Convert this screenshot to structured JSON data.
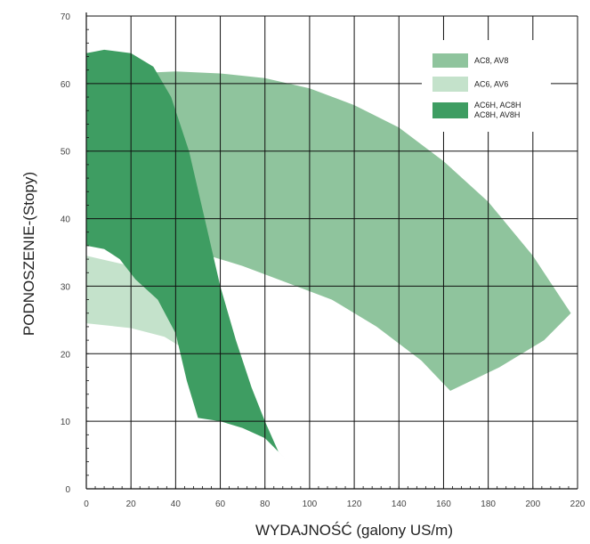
{
  "chart_data": {
    "type": "area",
    "xlabel": "WYDAJNOŚĆ (galony US/m)",
    "ylabel": "PODNOSZENIE-(Stopy)",
    "xlim": [
      0,
      220
    ],
    "ylim": [
      0,
      70
    ],
    "x_ticks": [
      0,
      20,
      40,
      60,
      80,
      100,
      120,
      140,
      160,
      180,
      200,
      220
    ],
    "y_ticks": [
      0,
      10,
      20,
      30,
      40,
      50,
      60,
      70
    ],
    "grid": true,
    "legend_position": "top-right",
    "series": [
      {
        "name": "AC8, AV8",
        "color": "#8fc49d",
        "region": [
          [
            0,
            60.5
          ],
          [
            20,
            61.5
          ],
          [
            40,
            61.8
          ],
          [
            60,
            61.5
          ],
          [
            80,
            60.8
          ],
          [
            100,
            59.3
          ],
          [
            120,
            56.8
          ],
          [
            140,
            53.5
          ],
          [
            160,
            48.5
          ],
          [
            180,
            42.5
          ],
          [
            200,
            34.5
          ],
          [
            217,
            26
          ],
          [
            205,
            22
          ],
          [
            185,
            18
          ],
          [
            163,
            14.5
          ],
          [
            150,
            19
          ],
          [
            130,
            24
          ],
          [
            110,
            28
          ],
          [
            90,
            30.5
          ],
          [
            70,
            33
          ],
          [
            50,
            35
          ],
          [
            30,
            36
          ],
          [
            0,
            36
          ]
        ]
      },
      {
        "name": "AC6, AV6",
        "color": "#c4e2cb",
        "region": [
          [
            0,
            34.5
          ],
          [
            20,
            33
          ],
          [
            35,
            31.5
          ],
          [
            50,
            30
          ],
          [
            60,
            28
          ],
          [
            62,
            26
          ],
          [
            57,
            21
          ],
          [
            53,
            17.5
          ],
          [
            45,
            20.5
          ],
          [
            35,
            22.5
          ],
          [
            20,
            23.8
          ],
          [
            0,
            24.5
          ]
        ]
      },
      {
        "name": "AC6H, AC8H\nAC8H, AV8H",
        "legend_lines": [
          "AC6H, AC8H",
          "AC8H, AV8H"
        ],
        "color": "#3e9d62",
        "region": [
          [
            0,
            64.5
          ],
          [
            8,
            65
          ],
          [
            20,
            64.5
          ],
          [
            30,
            62.5
          ],
          [
            38,
            58
          ],
          [
            46,
            50
          ],
          [
            53,
            40
          ],
          [
            60,
            30
          ],
          [
            67,
            22
          ],
          [
            74,
            15
          ],
          [
            80,
            10
          ],
          [
            86,
            5.5
          ],
          [
            89,
            4.5
          ],
          [
            80,
            7.5
          ],
          [
            70,
            9
          ],
          [
            60,
            10
          ],
          [
            50,
            10.5
          ],
          [
            45,
            16
          ],
          [
            40,
            23
          ],
          [
            32,
            28
          ],
          [
            22,
            31
          ],
          [
            15,
            34
          ],
          [
            8,
            35.5
          ],
          [
            0,
            36
          ]
        ]
      }
    ]
  }
}
